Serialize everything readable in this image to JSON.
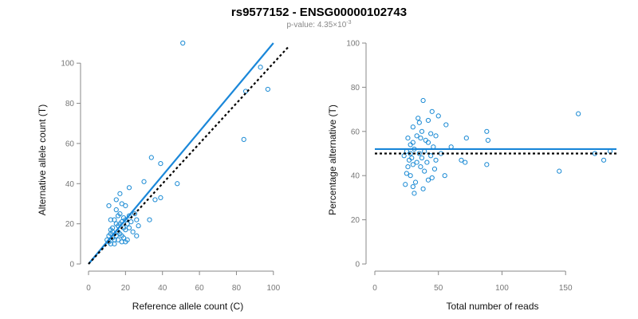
{
  "title": "rs9577152 - ENSG00000102743",
  "subtitle_prefix": "p-value: 4.35×10",
  "subtitle_exp": "-3",
  "colors": {
    "points": "#1a8ad4",
    "fit_line": "#1a87d9",
    "reference_line": "#000000"
  },
  "chart_data": [
    {
      "type": "scatter",
      "xlabel": "Reference allele count (C)",
      "ylabel": "Alternative allele count (T)",
      "xlim": [
        0,
        110
      ],
      "ylim": [
        0,
        110
      ],
      "xticks": [
        0,
        20,
        40,
        60,
        80,
        100
      ],
      "yticks": [
        0,
        20,
        40,
        60,
        80,
        100
      ],
      "fit_line": [
        [
          0,
          0
        ],
        [
          100,
          110
        ]
      ],
      "reference_line": [
        [
          0,
          0
        ],
        [
          108,
          108
        ]
      ],
      "points": [
        [
          51,
          110
        ],
        [
          93,
          98
        ],
        [
          97,
          87
        ],
        [
          85,
          86
        ],
        [
          84,
          62
        ],
        [
          34,
          53
        ],
        [
          39,
          50
        ],
        [
          30,
          41
        ],
        [
          48,
          40
        ],
        [
          22,
          38
        ],
        [
          17,
          35
        ],
        [
          11,
          29
        ],
        [
          15,
          32
        ],
        [
          18,
          30
        ],
        [
          20,
          29
        ],
        [
          36,
          32
        ],
        [
          39,
          33
        ],
        [
          33,
          22
        ],
        [
          22,
          24
        ],
        [
          25,
          25
        ],
        [
          12,
          22
        ],
        [
          14,
          22
        ],
        [
          16,
          24
        ],
        [
          17,
          25
        ],
        [
          19,
          23
        ],
        [
          20,
          22
        ],
        [
          21,
          20
        ],
        [
          23,
          21
        ],
        [
          26,
          22
        ],
        [
          27,
          19
        ],
        [
          12,
          17
        ],
        [
          13,
          18
        ],
        [
          15,
          20
        ],
        [
          16,
          19
        ],
        [
          18,
          21
        ],
        [
          19,
          18
        ],
        [
          20,
          17
        ],
        [
          22,
          18
        ],
        [
          24,
          16
        ],
        [
          26,
          14
        ],
        [
          11,
          14
        ],
        [
          12,
          15
        ],
        [
          13,
          13
        ],
        [
          14,
          12
        ],
        [
          15,
          14
        ],
        [
          16,
          16
        ],
        [
          17,
          15
        ],
        [
          18,
          14
        ],
        [
          19,
          13
        ],
        [
          20,
          11
        ],
        [
          10,
          12
        ],
        [
          11,
          11
        ],
        [
          12,
          10
        ],
        [
          14,
          10
        ],
        [
          16,
          12
        ],
        [
          18,
          11
        ],
        [
          21,
          12
        ],
        [
          13,
          16
        ],
        [
          17,
          20
        ],
        [
          15,
          27
        ]
      ]
    },
    {
      "type": "scatter",
      "xlabel": "Total number of reads",
      "ylabel": "Percentage alternative (T)",
      "xlim": [
        0,
        190
      ],
      "ylim": [
        0,
        100
      ],
      "xticks": [
        0,
        50,
        100,
        150
      ],
      "yticks": [
        0,
        20,
        40,
        60,
        80,
        100
      ],
      "fit_line": [
        [
          0,
          52
        ],
        [
          190,
          52
        ]
      ],
      "reference_line": [
        [
          0,
          50
        ],
        [
          190,
          50
        ]
      ],
      "points": [
        [
          38,
          74
        ],
        [
          160,
          68
        ],
        [
          45,
          69
        ],
        [
          50,
          67
        ],
        [
          34,
          66
        ],
        [
          35,
          64
        ],
        [
          42,
          65
        ],
        [
          56,
          63
        ],
        [
          30,
          62
        ],
        [
          88,
          60
        ],
        [
          37,
          60
        ],
        [
          44,
          59
        ],
        [
          33,
          58
        ],
        [
          48,
          58
        ],
        [
          26,
          57
        ],
        [
          36,
          57
        ],
        [
          40,
          56
        ],
        [
          30,
          55
        ],
        [
          42,
          55
        ],
        [
          89,
          56
        ],
        [
          72,
          57
        ],
        [
          28,
          54
        ],
        [
          46,
          53
        ],
        [
          31,
          52
        ],
        [
          25,
          51
        ],
        [
          39,
          51
        ],
        [
          52,
          50
        ],
        [
          35,
          50
        ],
        [
          23,
          49
        ],
        [
          44,
          49
        ],
        [
          29,
          48
        ],
        [
          37,
          48
        ],
        [
          27,
          47
        ],
        [
          41,
          46
        ],
        [
          33,
          46
        ],
        [
          68,
          47
        ],
        [
          71,
          46
        ],
        [
          30,
          45
        ],
        [
          36,
          44
        ],
        [
          88,
          45
        ],
        [
          26,
          44
        ],
        [
          47,
          43
        ],
        [
          39,
          42
        ],
        [
          25,
          41
        ],
        [
          145,
          42
        ],
        [
          55,
          40
        ],
        [
          28,
          40
        ],
        [
          45,
          39
        ],
        [
          42,
          38
        ],
        [
          32,
          37
        ],
        [
          24,
          36
        ],
        [
          30,
          35
        ],
        [
          38,
          34
        ],
        [
          31,
          32
        ],
        [
          173,
          50
        ],
        [
          185,
          51
        ],
        [
          180,
          47
        ],
        [
          48,
          47
        ],
        [
          60,
          53
        ],
        [
          28,
          50
        ]
      ]
    }
  ]
}
